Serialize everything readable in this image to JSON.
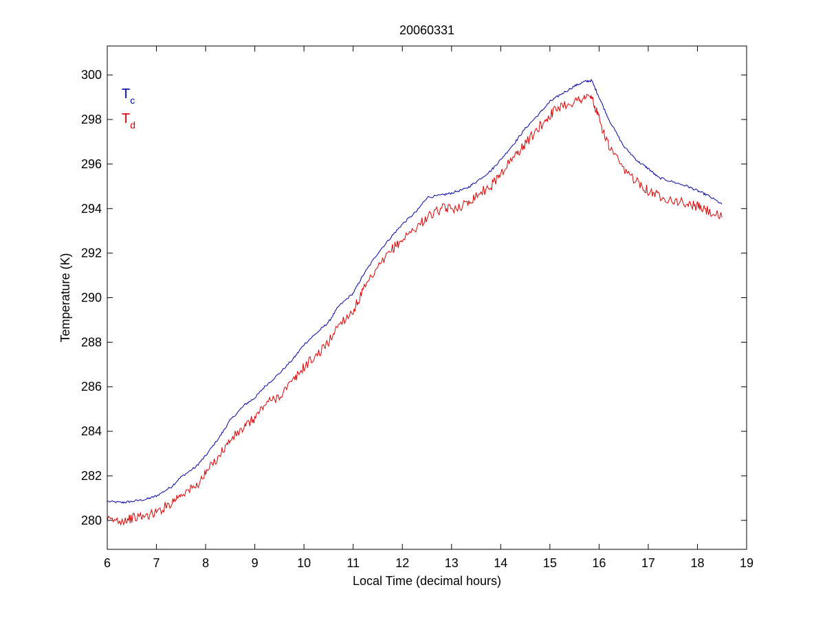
{
  "chart_data": {
    "type": "line",
    "title": "20060331",
    "xlabel": "Local Time (decimal hours)",
    "ylabel": "Temperature (K)",
    "xlim": [
      6,
      19
    ],
    "ylim": [
      278.7,
      301.3
    ],
    "xticks": [
      6,
      7,
      8,
      9,
      10,
      11,
      12,
      13,
      14,
      15,
      16,
      17,
      18,
      19
    ],
    "yticks": [
      280,
      282,
      284,
      286,
      288,
      290,
      292,
      294,
      296,
      298,
      300
    ],
    "grid": false,
    "legend_placement": "top-left",
    "series": [
      {
        "name": "Tc",
        "label_main": "T",
        "label_sub": "c",
        "color": "#0000aa",
        "x": [
          6.0,
          6.3,
          6.5,
          6.8,
          7.0,
          7.3,
          7.5,
          7.8,
          8.0,
          8.3,
          8.5,
          8.8,
          9.0,
          9.2,
          9.5,
          9.8,
          10.0,
          10.3,
          10.5,
          10.7,
          11.0,
          11.2,
          11.5,
          11.8,
          12.0,
          12.3,
          12.5,
          12.8,
          13.0,
          13.3,
          13.5,
          13.8,
          14.0,
          14.3,
          14.5,
          14.8,
          15.0,
          15.2,
          15.5,
          15.7,
          15.85,
          16.0,
          16.2,
          16.5,
          16.8,
          17.0,
          17.2,
          17.5,
          17.8,
          18.0,
          18.2,
          18.5
        ],
        "y": [
          280.85,
          280.8,
          280.85,
          280.95,
          281.1,
          281.5,
          281.95,
          282.4,
          282.9,
          283.8,
          284.5,
          285.2,
          285.5,
          286.0,
          286.6,
          287.3,
          287.9,
          288.5,
          288.9,
          289.6,
          290.2,
          291.0,
          292.0,
          292.8,
          293.3,
          293.9,
          294.5,
          294.6,
          294.7,
          294.9,
          295.2,
          295.7,
          296.2,
          297.0,
          297.6,
          298.3,
          298.8,
          299.1,
          299.5,
          299.7,
          299.75,
          299.0,
          298.0,
          296.8,
          296.1,
          295.8,
          295.4,
          295.2,
          295.0,
          294.8,
          294.6,
          294.2
        ]
      },
      {
        "name": "Td",
        "label_main": "T",
        "label_sub": "d",
        "color": "#dd0000",
        "x": [
          6.0,
          6.3,
          6.5,
          6.8,
          7.0,
          7.3,
          7.5,
          7.8,
          8.0,
          8.3,
          8.5,
          8.8,
          9.0,
          9.2,
          9.5,
          9.8,
          10.0,
          10.3,
          10.5,
          10.7,
          11.0,
          11.2,
          11.5,
          11.8,
          12.0,
          12.3,
          12.5,
          12.8,
          13.0,
          13.3,
          13.5,
          13.8,
          14.0,
          14.3,
          14.5,
          14.8,
          15.0,
          15.2,
          15.5,
          15.7,
          15.85,
          16.0,
          16.2,
          16.5,
          16.8,
          17.0,
          17.2,
          17.5,
          17.8,
          18.0,
          18.2,
          18.5
        ],
        "y": [
          280.0,
          280.0,
          280.1,
          280.2,
          280.35,
          280.8,
          281.2,
          281.5,
          282.1,
          283.0,
          283.6,
          284.2,
          284.6,
          285.2,
          285.6,
          286.3,
          286.9,
          287.5,
          288.0,
          288.8,
          289.4,
          290.3,
          291.3,
          292.2,
          292.6,
          293.2,
          293.6,
          294.0,
          294.0,
          294.2,
          294.6,
          295.0,
          295.6,
          296.4,
          296.9,
          297.7,
          298.2,
          298.6,
          298.8,
          299.0,
          299.0,
          298.0,
          296.8,
          295.7,
          295.2,
          294.8,
          294.6,
          294.4,
          294.2,
          294.1,
          293.9,
          293.6
        ]
      }
    ]
  }
}
